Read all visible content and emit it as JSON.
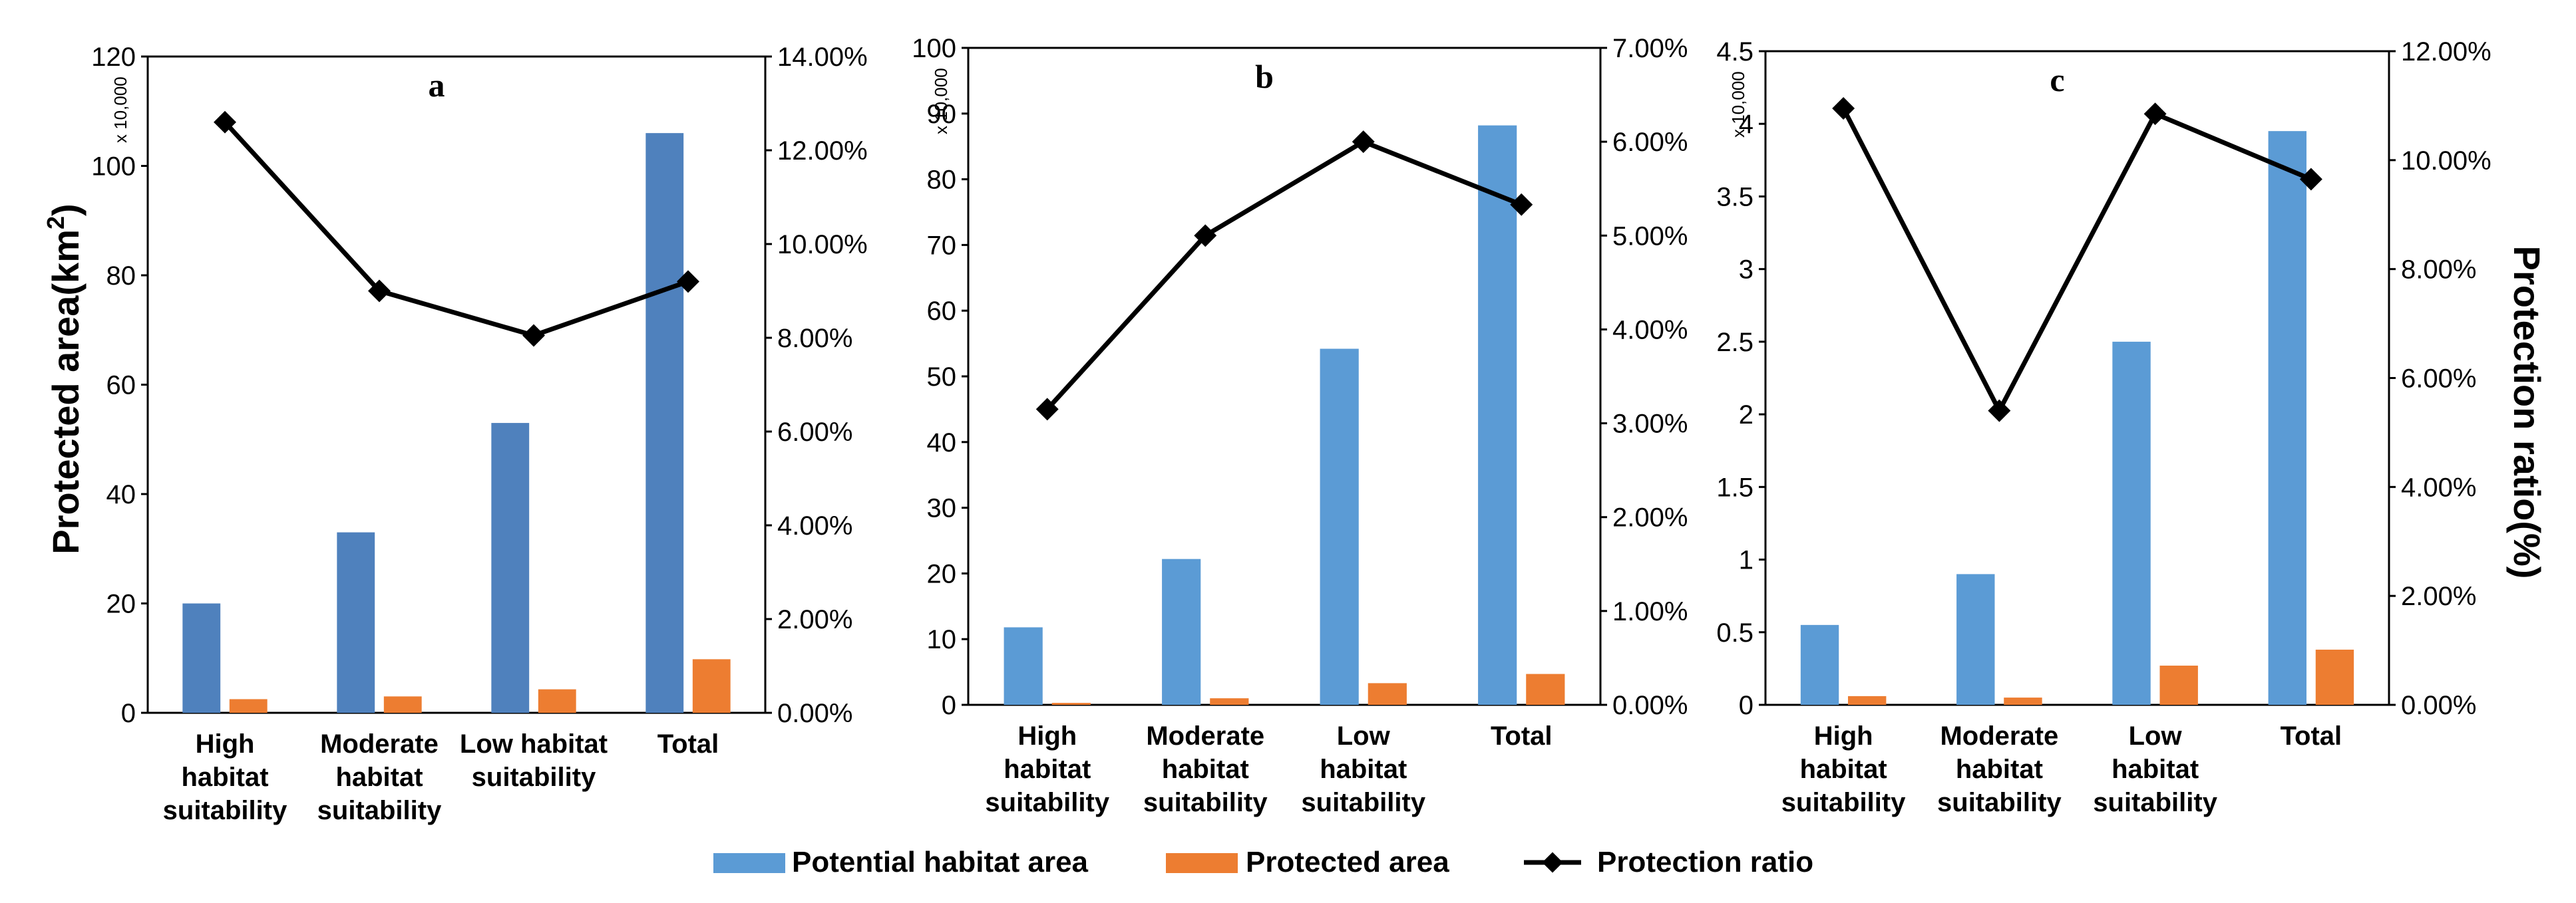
{
  "y_left_label": "Protected area(km",
  "y_left_label_sup": "2",
  "y_left_label_end": ")",
  "y_right_label": "Protection ratio(%)",
  "multiplier_label": "x 10,000",
  "legend": [
    {
      "name": "Potential habitat area",
      "type": "bar",
      "color": "#5B9BD5"
    },
    {
      "name": "Protected area",
      "type": "bar",
      "color": "#ED7D31"
    },
    {
      "name": "Protection ratio",
      "type": "line-marker",
      "color": "#000000"
    }
  ],
  "chart_data": [
    {
      "type": "bar",
      "panel": "a",
      "categories": [
        [
          "High",
          "habitat",
          "suitability"
        ],
        [
          "Moderate",
          "habitat",
          "suitability"
        ],
        [
          "Low habitat",
          "suitability"
        ],
        [
          "Total"
        ]
      ],
      "series": [
        {
          "name": "Potential habitat area",
          "type": "bar",
          "axis": "left",
          "color": "#4F81BD",
          "values": [
            20,
            33,
            53,
            106
          ]
        },
        {
          "name": "Protected area",
          "type": "bar",
          "axis": "left",
          "color": "#ED7D31",
          "values": [
            2.5,
            3,
            4.3,
            9.8
          ]
        },
        {
          "name": "Protection ratio",
          "type": "line",
          "axis": "right",
          "color": "#000000",
          "values": [
            12.6,
            9.0,
            8.05,
            9.2
          ]
        }
      ],
      "y_left": {
        "min": 0,
        "max": 120,
        "ticks": [
          0,
          20,
          40,
          60,
          80,
          100,
          120
        ],
        "tick_labels": [
          "0",
          "20",
          "40",
          "60",
          "80",
          "100",
          "120"
        ]
      },
      "y_right": {
        "min": 0,
        "max": 14,
        "ticks": [
          0,
          2,
          4,
          6,
          8,
          10,
          12,
          14
        ],
        "tick_labels": [
          "0.00%",
          "2.00%",
          "4.00%",
          "6.00%",
          "8.00%",
          "10.00%",
          "12.00%",
          "14.00%"
        ]
      }
    },
    {
      "type": "bar",
      "panel": "b",
      "categories": [
        [
          "High",
          "habitat",
          "suitability"
        ],
        [
          "Moderate",
          "habitat",
          "suitability"
        ],
        [
          "Low",
          "habitat",
          "suitability"
        ],
        [
          "Total"
        ]
      ],
      "series": [
        {
          "name": "Potential habitat area",
          "type": "bar",
          "axis": "left",
          "color": "#5B9BD5",
          "values": [
            11.8,
            22.2,
            54.2,
            88.2
          ]
        },
        {
          "name": "Protected area",
          "type": "bar",
          "axis": "left",
          "color": "#ED7D31",
          "values": [
            0.3,
            1.0,
            3.3,
            4.7
          ]
        },
        {
          "name": "Protection ratio",
          "type": "line",
          "axis": "right",
          "color": "#000000",
          "values": [
            3.15,
            5.0,
            6.0,
            5.33
          ]
        }
      ],
      "y_left": {
        "min": 0,
        "max": 100,
        "ticks": [
          0,
          10,
          20,
          30,
          40,
          50,
          60,
          70,
          80,
          90,
          100
        ],
        "tick_labels": [
          "0",
          "10",
          "20",
          "30",
          "40",
          "50",
          "60",
          "70",
          "80",
          "90",
          "100"
        ]
      },
      "y_right": {
        "min": 0,
        "max": 7,
        "ticks": [
          0,
          1,
          2,
          3,
          4,
          5,
          6,
          7
        ],
        "tick_labels": [
          "0.00%",
          "1.00%",
          "2.00%",
          "3.00%",
          "4.00%",
          "5.00%",
          "6.00%",
          "7.00%"
        ]
      }
    },
    {
      "type": "bar",
      "panel": "c",
      "categories": [
        [
          "High",
          "habitat",
          "suitability"
        ],
        [
          "Moderate",
          "habitat",
          "suitability"
        ],
        [
          "Low",
          "habitat",
          "suitability"
        ],
        [
          "Total"
        ]
      ],
      "series": [
        {
          "name": "Potential habitat area",
          "type": "bar",
          "axis": "left",
          "color": "#5B9BD5",
          "values": [
            0.55,
            0.9,
            2.5,
            3.95
          ]
        },
        {
          "name": "Protected area",
          "type": "bar",
          "axis": "left",
          "color": "#ED7D31",
          "values": [
            0.06,
            0.05,
            0.27,
            0.38
          ]
        },
        {
          "name": "Protection ratio",
          "type": "line",
          "axis": "right",
          "color": "#000000",
          "values": [
            10.95,
            5.4,
            10.85,
            9.65
          ]
        }
      ],
      "y_left": {
        "min": 0,
        "max": 4.5,
        "ticks": [
          0,
          0.5,
          1,
          1.5,
          2,
          2.5,
          3,
          3.5,
          4,
          4.5
        ],
        "tick_labels": [
          "0",
          "0.5",
          "1",
          "1.5",
          "2",
          "2.5",
          "3",
          "3.5",
          "4",
          "4.5"
        ]
      },
      "y_right": {
        "min": 0,
        "max": 12,
        "ticks": [
          0,
          2,
          4,
          6,
          8,
          10,
          12
        ],
        "tick_labels": [
          "0.00%",
          "2.00%",
          "4.00%",
          "6.00%",
          "8.00%",
          "10.00%",
          "12.00%"
        ]
      }
    }
  ]
}
